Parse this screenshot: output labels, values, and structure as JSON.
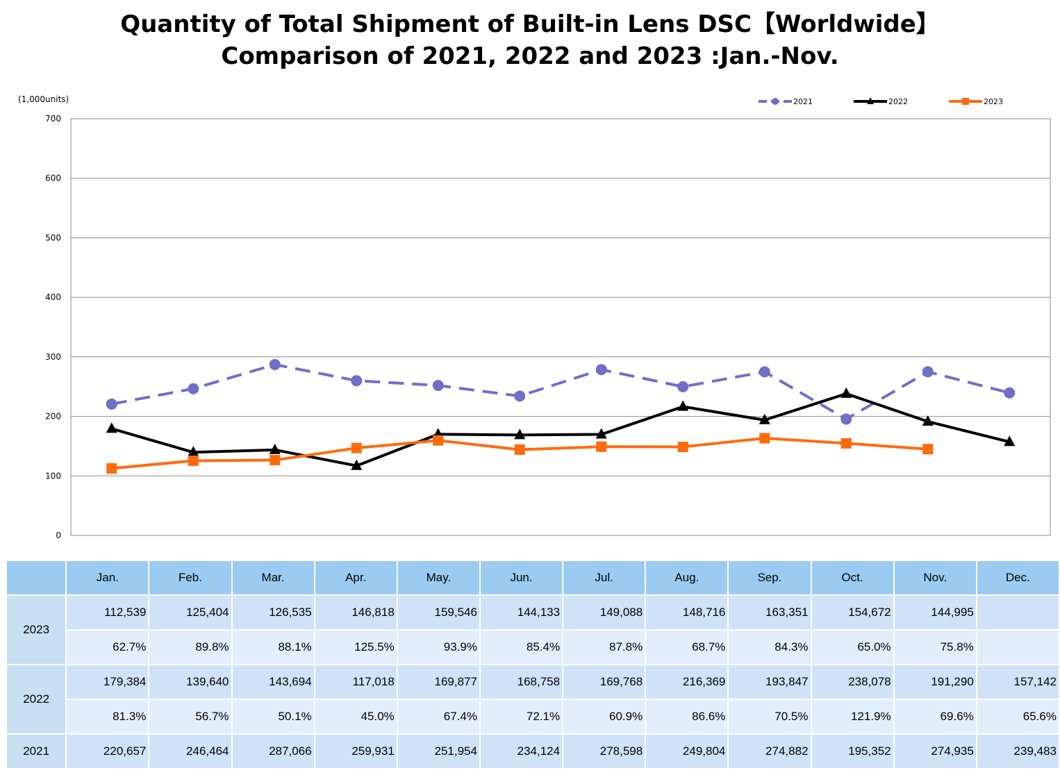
{
  "title_lines": [
    "Quantity of Total Shipment of Built-in Lens DSC【Worldwide】",
    "Comparison of 2021, 2022 and 2023 :Jan.-Nov."
  ],
  "chart_data": {
    "type": "line",
    "unit_label": "(1,000units)",
    "ylim": [
      0,
      700
    ],
    "y_ticks": [
      "0",
      "100",
      "200",
      "300",
      "400",
      "500",
      "600",
      "700"
    ],
    "grid": true,
    "legend_position": "top-right",
    "categories": [
      "Jan.",
      "Feb.",
      "Mar.",
      "Apr.",
      "May.",
      "Jun.",
      "Jul.",
      "Aug.",
      "Sep.",
      "Oct.",
      "Nov.",
      "Dec."
    ],
    "series": [
      {
        "name": "2021",
        "color": "#6f6fc8",
        "marker": "circle",
        "dashed": true,
        "values": [
          220.657,
          246.464,
          287.066,
          259.931,
          251.954,
          234.124,
          278.598,
          249.804,
          274.882,
          195.352,
          274.935,
          239.483
        ]
      },
      {
        "name": "2022",
        "color": "#000000",
        "marker": "triangle",
        "dashed": false,
        "values": [
          179.384,
          139.64,
          143.694,
          117.018,
          169.877,
          168.758,
          169.768,
          216.369,
          193.847,
          238.078,
          191.29,
          157.142
        ]
      },
      {
        "name": "2023",
        "color": "#ff6a0e",
        "marker": "square",
        "dashed": false,
        "values": [
          112.539,
          125.404,
          126.535,
          146.818,
          159.546,
          144.133,
          149.088,
          148.716,
          163.351,
          154.672,
          144.995,
          null
        ]
      }
    ]
  },
  "table": {
    "months": [
      "Jan.",
      "Feb.",
      "Mar.",
      "Apr.",
      "May.",
      "Jun.",
      "Jul.",
      "Aug.",
      "Sep.",
      "Oct.",
      "Nov.",
      "Dec."
    ],
    "y2023": {
      "label": "2023",
      "values": [
        "112,539",
        "125,404",
        "126,535",
        "146,818",
        "159,546",
        "144,133",
        "149,088",
        "148,716",
        "163,351",
        "154,672",
        "144,995",
        ""
      ],
      "ratios": [
        "62.7%",
        "89.8%",
        "88.1%",
        "125.5%",
        "93.9%",
        "85.4%",
        "87.8%",
        "68.7%",
        "84.3%",
        "65.0%",
        "75.8%",
        ""
      ]
    },
    "y2022": {
      "label": "2022",
      "values": [
        "179,384",
        "139,640",
        "143,694",
        "117,018",
        "169,877",
        "168,758",
        "169,768",
        "216,369",
        "193,847",
        "238,078",
        "191,290",
        "157,142"
      ],
      "ratios": [
        "81.3%",
        "56.7%",
        "50.1%",
        "45.0%",
        "67.4%",
        "72.1%",
        "60.9%",
        "86.6%",
        "70.5%",
        "121.9%",
        "69.6%",
        "65.6%"
      ]
    },
    "y2021": {
      "label": "2021",
      "values": [
        "220,657",
        "246,464",
        "287,066",
        "259,931",
        "251,954",
        "234,124",
        "278,598",
        "249,804",
        "274,882",
        "195,352",
        "274,935",
        "239,483"
      ]
    }
  }
}
